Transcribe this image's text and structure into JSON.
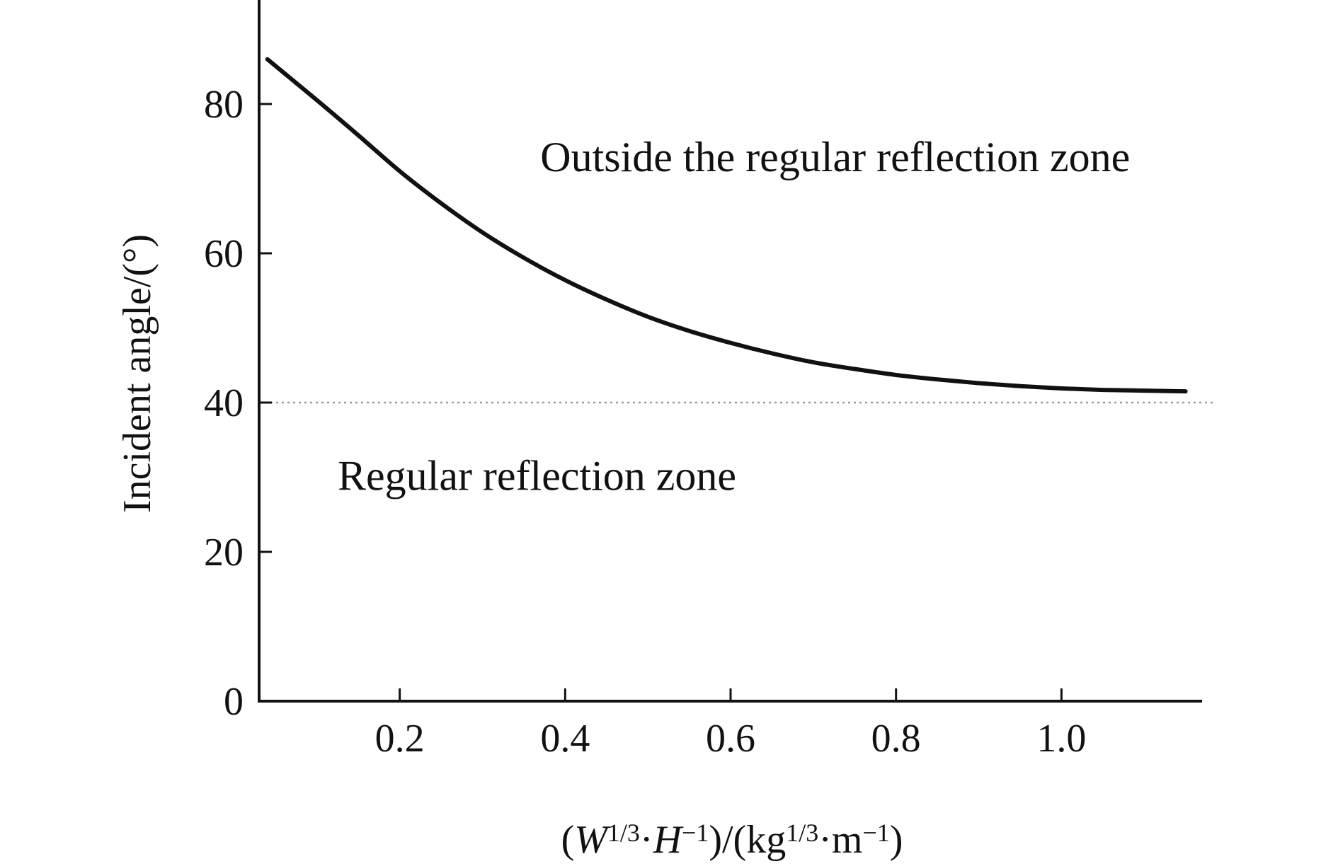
{
  "chart_data": {
    "type": "line",
    "title": "",
    "xlabel": {
      "parts": [
        "(",
        "W",
        "1/3",
        "·",
        "H",
        "−1",
        ")/(kg",
        "1/3",
        "·m",
        "−1",
        ")"
      ]
    },
    "ylabel": "Incident angle/(°)",
    "xlim": [
      0.03,
      1.17
    ],
    "ylim": [
      0,
      90
    ],
    "xticks": [
      0.2,
      0.4,
      0.6,
      0.8,
      1.0
    ],
    "xtick_labels": [
      "0.2",
      "0.4",
      "0.6",
      "0.8",
      "1.0"
    ],
    "yticks": [
      0,
      20,
      40,
      60,
      80
    ],
    "ytick_labels": [
      "0",
      "20",
      "40",
      "60",
      "80"
    ],
    "grid": false,
    "legend": "none",
    "series": [
      {
        "x": [
          0.04,
          0.1,
          0.15,
          0.2,
          0.25,
          0.3,
          0.35,
          0.4,
          0.45,
          0.5,
          0.55,
          0.6,
          0.65,
          0.7,
          0.75,
          0.8,
          0.85,
          0.9,
          0.95,
          1.0,
          1.05,
          1.1,
          1.15
        ],
        "y": [
          86,
          80.5,
          75.8,
          71,
          66.7,
          62.8,
          59.4,
          56.4,
          53.8,
          51.5,
          49.6,
          48,
          46.6,
          45.4,
          44.5,
          43.7,
          43.1,
          42.6,
          42.2,
          41.9,
          41.7,
          41.6,
          41.5
        ],
        "color": "#111111"
      }
    ],
    "reference_line": {
      "y": 40,
      "style": "dotted",
      "color": "#999999"
    },
    "annotations": [
      {
        "text": "Outside the regular reflection zone",
        "x": 0.37,
        "y": 71
      },
      {
        "text": "Regular reflection zone",
        "x": 0.125,
        "y": 28.3
      }
    ]
  }
}
